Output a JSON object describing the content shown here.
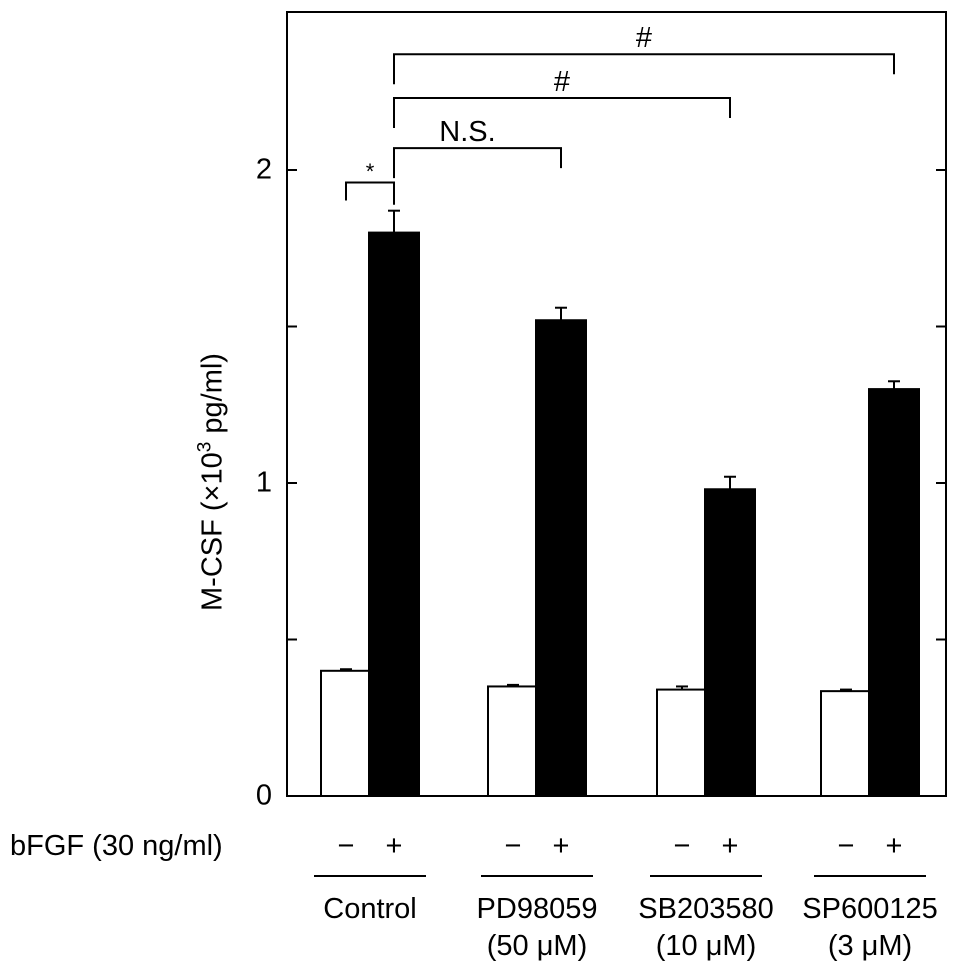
{
  "chart_data": {
    "type": "bar",
    "ylabel": "M-CSF (×10",
    "ylabel_sup": "3",
    "ylabel_tail": " pg/ml)",
    "ylim": [
      0,
      2.5
    ],
    "yticks": [
      "0",
      "1",
      "2"
    ],
    "minor_ticks": [
      0.5,
      1.5
    ],
    "treatment_label": "bFGF (30 ng/ml)",
    "groups": [
      {
        "name": "Control",
        "line2": "",
        "bars": [
          {
            "sign": "−",
            "value": 0.4,
            "error": 0.005,
            "fill": "#ffffff"
          },
          {
            "sign": "+",
            "value": 1.8,
            "error": 0.07,
            "fill": "#000000"
          }
        ]
      },
      {
        "name": "PD98059",
        "line2": "(50 μM)",
        "bars": [
          {
            "sign": "−",
            "value": 0.35,
            "error": 0.005,
            "fill": "#ffffff"
          },
          {
            "sign": "+",
            "value": 1.52,
            "error": 0.04,
            "fill": "#000000"
          }
        ]
      },
      {
        "name": "SB203580",
        "line2": "(10 μM)",
        "bars": [
          {
            "sign": "−",
            "value": 0.34,
            "error": 0.01,
            "fill": "#ffffff"
          },
          {
            "sign": "+",
            "value": 0.98,
            "error": 0.04,
            "fill": "#000000"
          }
        ]
      },
      {
        "name": "SP600125",
        "line2": "(3 μM)",
        "bars": [
          {
            "sign": "−",
            "value": 0.335,
            "error": 0.005,
            "fill": "#ffffff"
          },
          {
            "sign": "+",
            "value": 1.3,
            "error": 0.025,
            "fill": "#000000"
          }
        ]
      }
    ],
    "significance": [
      {
        "label": "*",
        "from": "Control −",
        "to": "Control +",
        "level": 1.96
      },
      {
        "label": "N.S.",
        "from": "Control +",
        "to": "PD98059 +",
        "level": 2.07
      },
      {
        "label": "#",
        "from": "Control +",
        "to": "SB203580 +",
        "level": 2.23
      },
      {
        "label": "#",
        "from": "Control +",
        "to": "SP600125 +",
        "level": 2.37
      }
    ]
  }
}
